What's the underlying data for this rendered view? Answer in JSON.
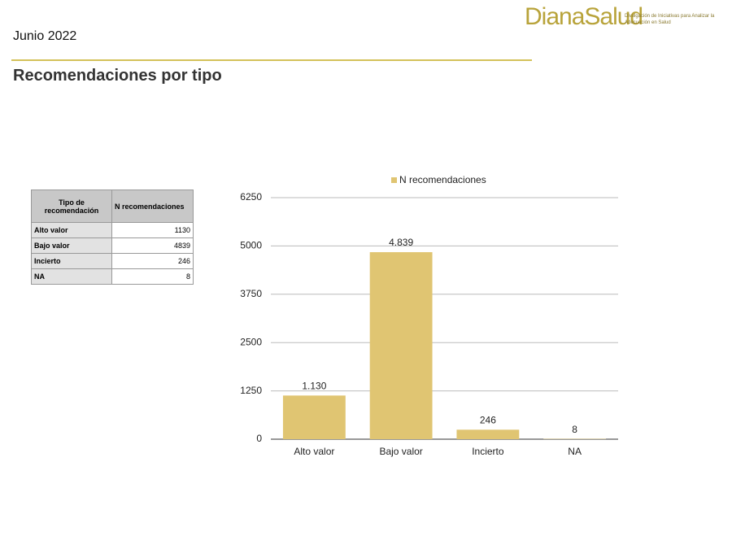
{
  "header": {
    "date": "Junio 2022",
    "title": "Recomendaciones por tipo",
    "logo": "DianaSalud",
    "tagline": "Divulgación de Iniciativas para Analizar la Adecuación en Salud"
  },
  "table": {
    "columns": [
      "Tipo de recomendación",
      "N recomendaciones"
    ],
    "rows": [
      [
        "Alto valor",
        1130
      ],
      [
        "Bajo valor",
        4839
      ],
      [
        "Incierto",
        246
      ],
      [
        "NA",
        8
      ]
    ]
  },
  "chart_data": {
    "type": "bar",
    "categories": [
      "Alto valor",
      "Bajo valor",
      "Incierto",
      "NA"
    ],
    "series": [
      {
        "name": "N recomendaciones",
        "color": "#e0c572",
        "values": [
          1130,
          4839,
          246,
          8
        ],
        "value_labels": [
          "1.130",
          "4.839",
          "246",
          "8"
        ]
      }
    ],
    "ylim": [
      0,
      6250
    ],
    "yticks": [
      0,
      1250,
      2500,
      3750,
      5000,
      6250
    ],
    "grid": true,
    "legend": "top"
  }
}
